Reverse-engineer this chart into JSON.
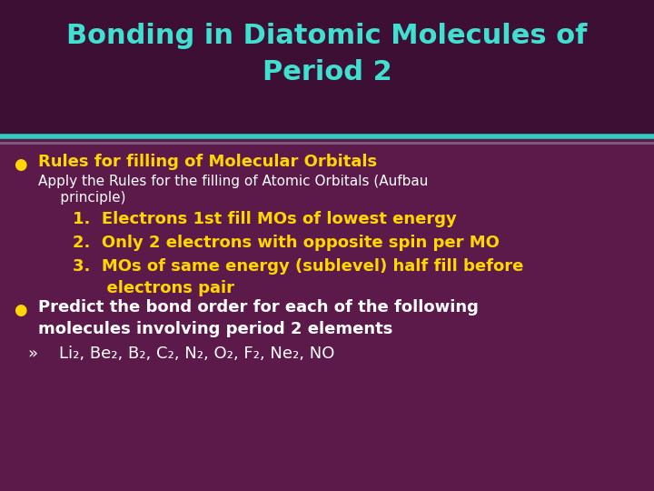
{
  "title_line1": "Bonding in Diatomic Molecules of",
  "title_line2": "Period 2",
  "title_color": "#40E0D0",
  "title_fontsize": 22,
  "bg_color": "#5C1A4A",
  "title_bg_color": "#3D0F35",
  "separator_color1": "#2ECEC0",
  "separator_color2": "#7B6080",
  "bullet_color": "#FFD700",
  "bullet1_text": "Rules for filling of Molecular Orbitals",
  "bullet1_color": "#FFD700",
  "subtext1_line1": "Apply the Rules for the filling of Atomic Orbitals (Aufbau",
  "subtext1_line2": "     principle)",
  "subtext_color": "#FFFFFF",
  "numbered_items": [
    "Electrons 1st fill MOs of lowest energy",
    "Only 2 electrons with opposite spin per MO",
    "MOs of same energy (sublevel) half fill before",
    "      electrons pair"
  ],
  "numbered_color": "#FFD700",
  "bullet2_line1": "Predict the bond order for each of the following",
  "bullet2_line2": "molecules involving period 2 elements",
  "bullet2_color": "#FFFFFF",
  "molecules_label": "»",
  "molecules_text": "Li₂, Be₂, B₂, C₂, N₂, O₂, F₂, Ne₂, NO",
  "molecules_color": "#FFFFFF",
  "font_family": "DejaVu Sans",
  "subtext_fontsize": 11,
  "numbered_fontsize": 13,
  "bullet_fontsize": 13,
  "mol_fontsize": 13
}
